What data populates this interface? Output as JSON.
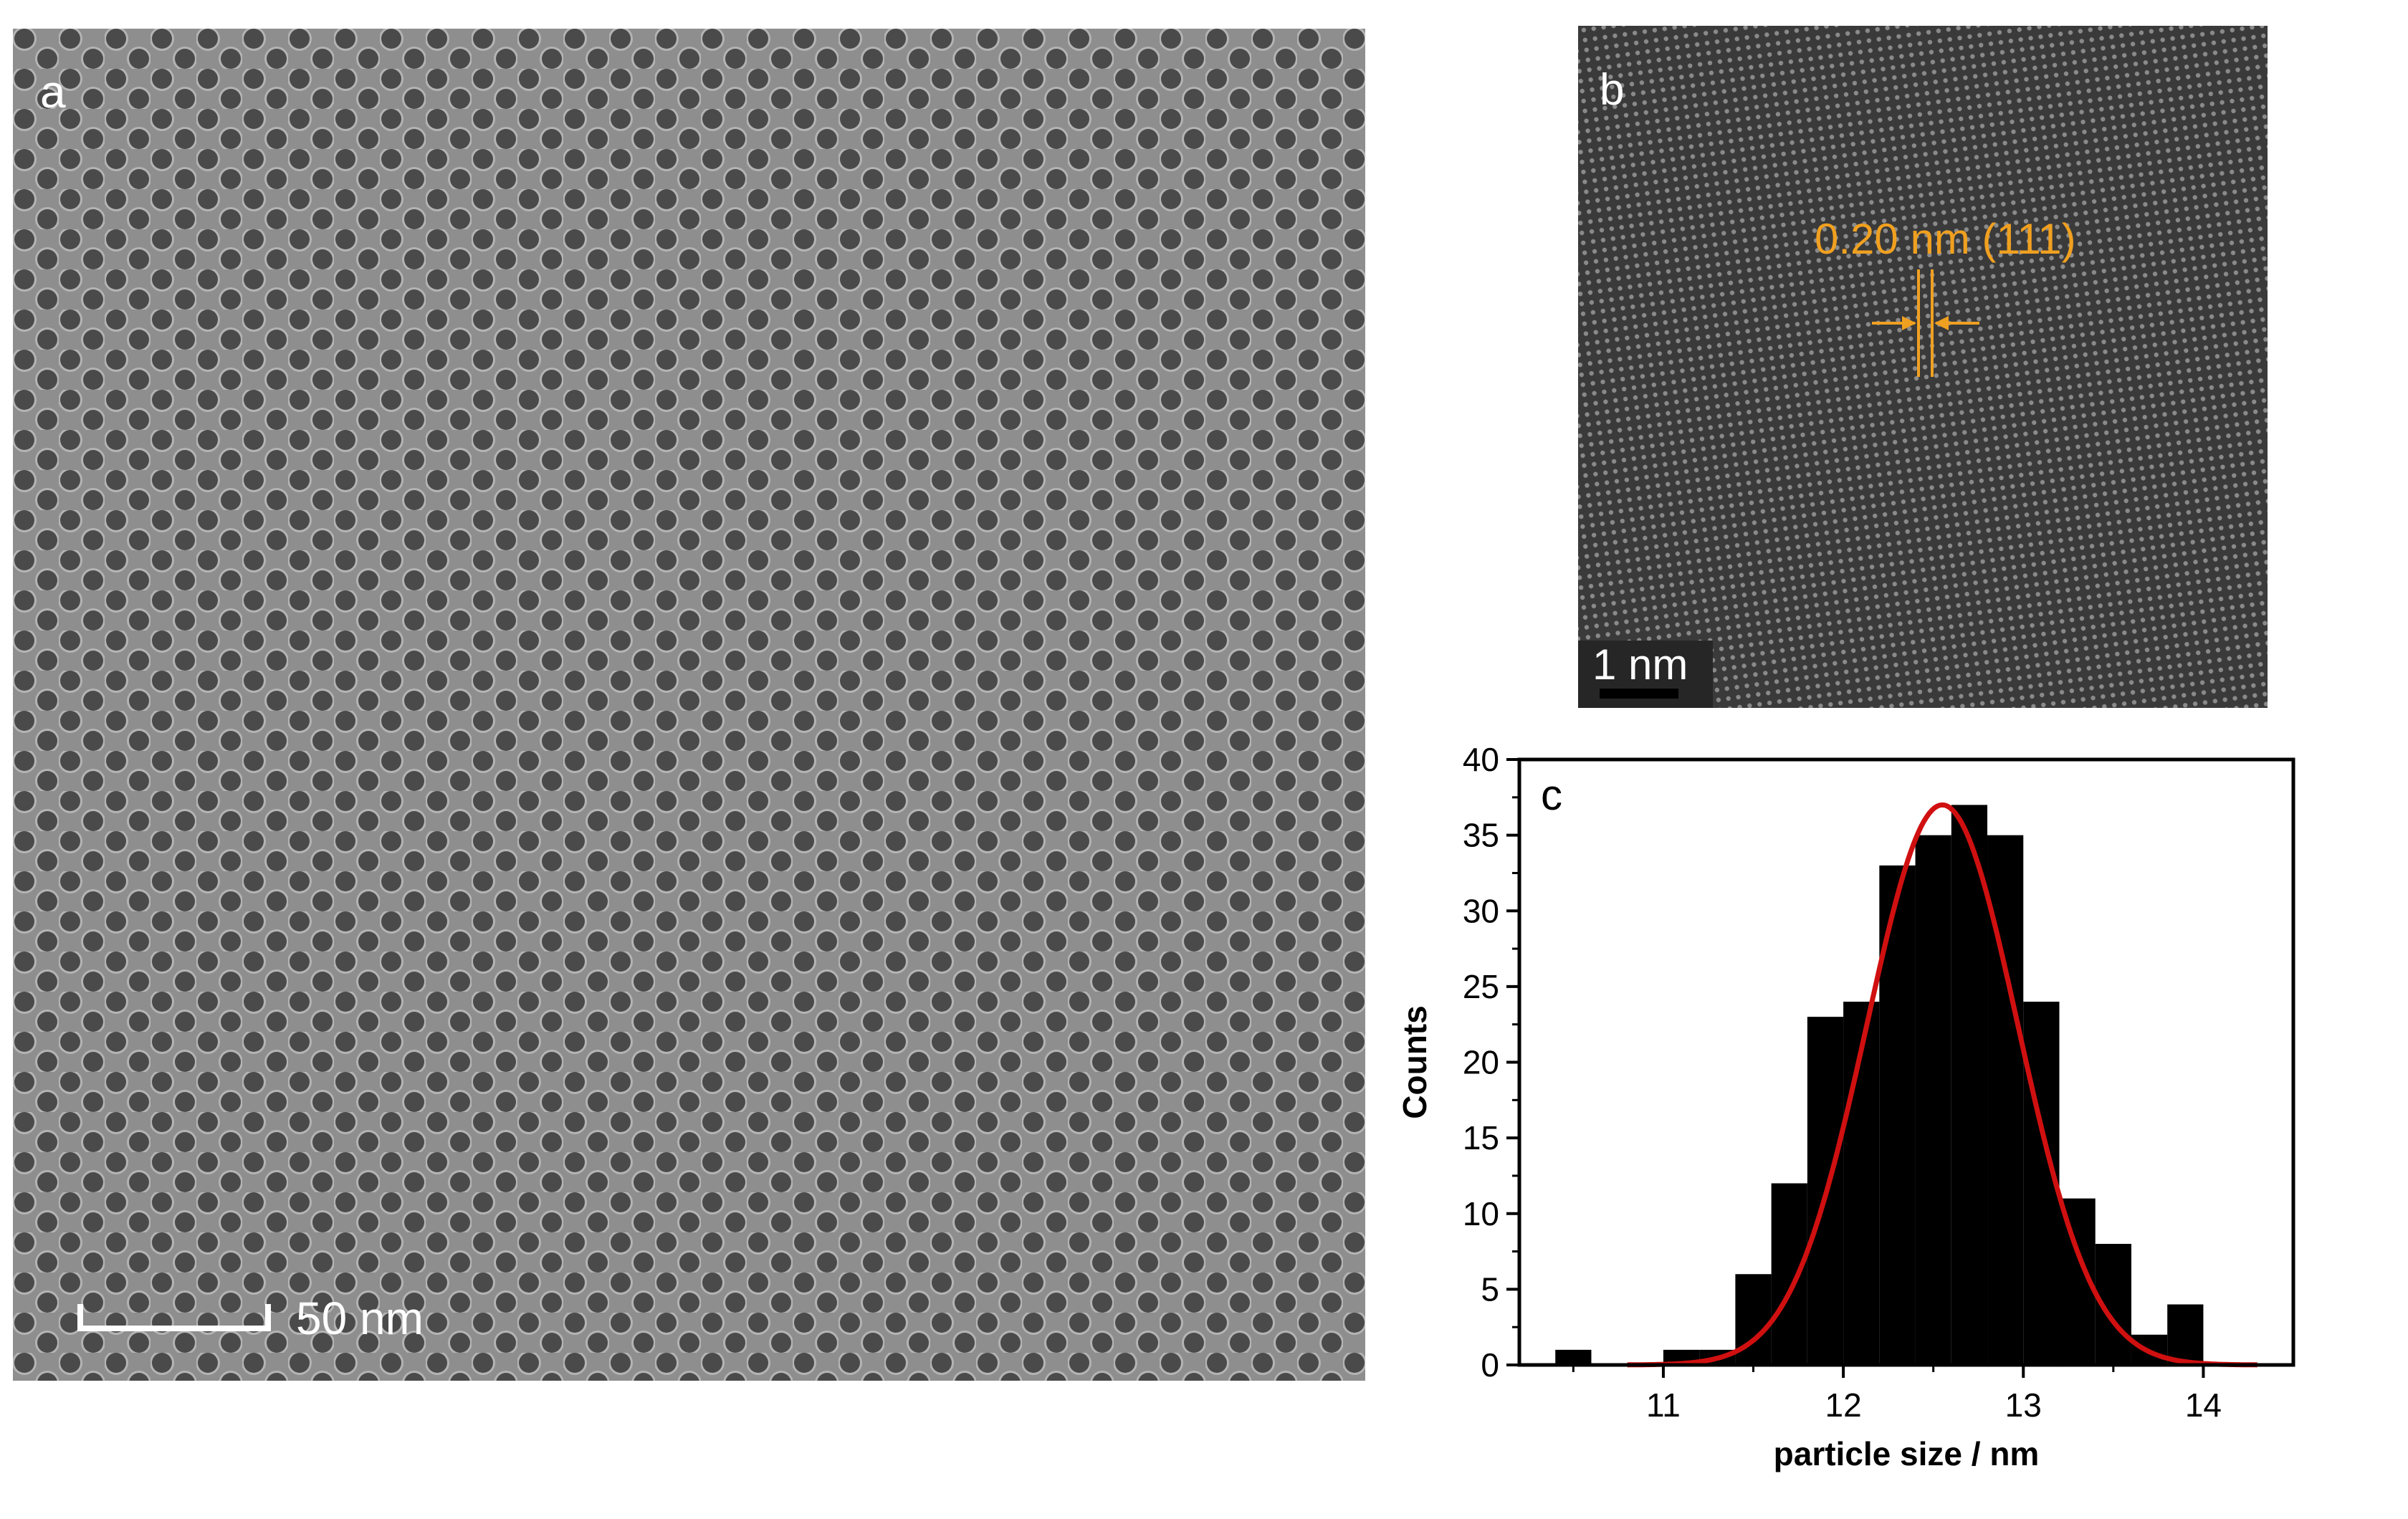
{
  "figure": {
    "panel_a": {
      "label": "a",
      "scale_bar_text": "50 nm",
      "colors": {
        "background": "#8e8e8e",
        "particle": "#4a4a4a",
        "halo": "#b4b4b4",
        "annotation": "#ffffff"
      }
    },
    "panel_b": {
      "label": "b",
      "scale_bar_text": "1 nm",
      "annotation": "0.20 nm (111)",
      "colors": {
        "background": "#3a3a3a",
        "fringe": "#5c5c5c",
        "annotation": "#f0a020"
      }
    }
  },
  "chart_data": {
    "type": "bar",
    "panel_label": "c",
    "xlabel": "particle size / nm",
    "ylabel": "Counts",
    "xlim": [
      10.2,
      14.5
    ],
    "ylim": [
      0,
      40
    ],
    "x_ticks": [
      11,
      12,
      13,
      14
    ],
    "y_ticks": [
      0,
      5,
      10,
      15,
      20,
      25,
      30,
      35,
      40
    ],
    "bin_width": 0.2,
    "bins": [
      {
        "x": 10.5,
        "count": 1
      },
      {
        "x": 10.7,
        "count": 0
      },
      {
        "x": 10.9,
        "count": 0
      },
      {
        "x": 11.1,
        "count": 1
      },
      {
        "x": 11.3,
        "count": 1
      },
      {
        "x": 11.5,
        "count": 6
      },
      {
        "x": 11.7,
        "count": 12
      },
      {
        "x": 11.9,
        "count": 23
      },
      {
        "x": 12.1,
        "count": 24
      },
      {
        "x": 12.3,
        "count": 33
      },
      {
        "x": 12.5,
        "count": 35
      },
      {
        "x": 12.7,
        "count": 37
      },
      {
        "x": 12.9,
        "count": 35
      },
      {
        "x": 13.1,
        "count": 24
      },
      {
        "x": 13.3,
        "count": 11
      },
      {
        "x": 13.5,
        "count": 8
      },
      {
        "x": 13.7,
        "count": 2
      },
      {
        "x": 13.9,
        "count": 4
      }
    ],
    "fit": {
      "type": "gaussian",
      "mean": 12.55,
      "sigma": 0.42,
      "amplitude": 37,
      "x_range": [
        10.8,
        14.3
      ],
      "color": "#d01010"
    },
    "bar_color": "#000000"
  }
}
